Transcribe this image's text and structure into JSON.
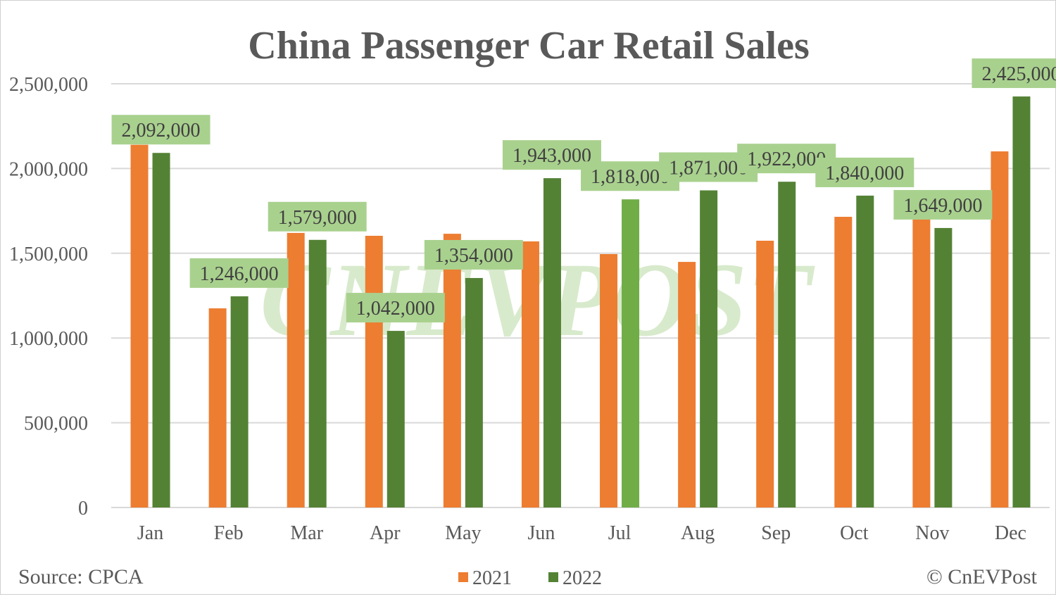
{
  "chart_data": {
    "type": "bar",
    "title": "China Passenger Car Retail Sales",
    "categories": [
      "Jan",
      "Feb",
      "Mar",
      "Apr",
      "May",
      "Jun",
      "Jul",
      "Aug",
      "Sep",
      "Oct",
      "Nov",
      "Dec"
    ],
    "series": [
      {
        "name": "2021",
        "color": "#ED7D31",
        "values": [
          2140000,
          1175000,
          1620000,
          1603000,
          1615000,
          1570000,
          1495000,
          1449000,
          1574000,
          1715000,
          1700000,
          2101000
        ]
      },
      {
        "name": "2022",
        "color": "#548235",
        "values": [
          2092000,
          1246000,
          1579000,
          1042000,
          1354000,
          1943000,
          1818000,
          1871000,
          1922000,
          1840000,
          1649000,
          2425000
        ],
        "labels": [
          "2,092,000",
          "1,246,000",
          "1,579,000",
          "1,042,000",
          "1,354,000",
          "1,943,000",
          "1,818,000",
          "1,871,000",
          "1,922,000",
          "1,840,000",
          "1,649,000",
          "2,425,000"
        ],
        "highlight_color": "#70AD47",
        "highlight_index": 6
      }
    ],
    "yticks": [
      "0",
      "500,000",
      "1,000,000",
      "1,500,000",
      "2,000,000",
      "2,500,000"
    ],
    "ylim": [
      0,
      2500000
    ],
    "grid": true,
    "legend_placement": "bottom",
    "label_box_color": "#A9D18E",
    "source": "Source: CPCA",
    "copyright": "© CnEVPost",
    "watermark": "CnEVPost"
  }
}
